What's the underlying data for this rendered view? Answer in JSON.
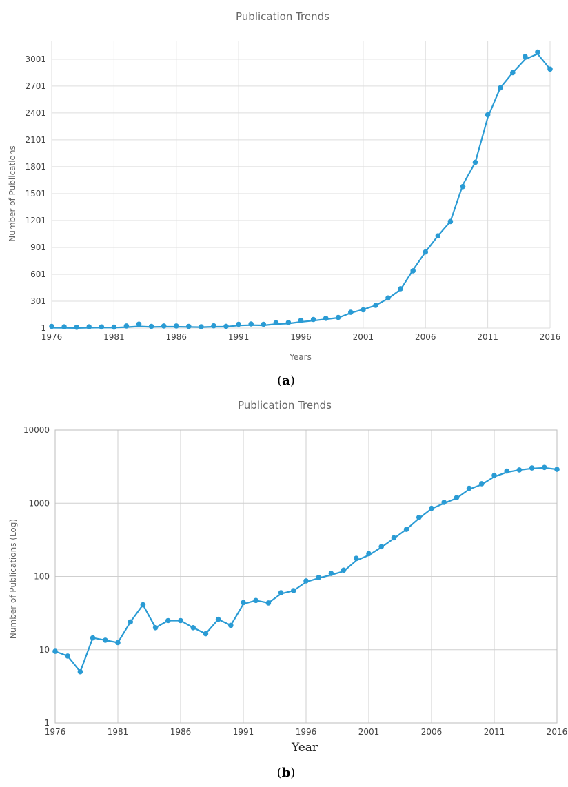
{
  "chart_data": [
    {
      "type": "line",
      "title": "Publication Trends",
      "xlabel": "Years",
      "ylabel": "Number of Publications",
      "xlim": [
        1976,
        2016
      ],
      "ylim": [
        1,
        3200
      ],
      "x_ticks": [
        "1976",
        "1981",
        "1986",
        "1991",
        "1996",
        "2001",
        "2006",
        "2011",
        "2016"
      ],
      "y_ticks": [
        "1",
        "301",
        "601",
        "901",
        "1201",
        "1501",
        "1801",
        "2101",
        "2401",
        "2701",
        "3001"
      ],
      "grid": true,
      "color": "#2a9bd4",
      "caption": "a",
      "series": [
        {
          "x": [
            1976,
            1977,
            1978,
            1979,
            1980,
            1981,
            1982,
            1983,
            1984,
            1985,
            1986,
            1987,
            1988,
            1989,
            1990,
            1991,
            1992,
            1993,
            1994,
            1995,
            1996,
            1997,
            1998,
            1999,
            2000,
            2001,
            2002,
            2003,
            2004,
            2005,
            2006,
            2007,
            2008,
            2009,
            2010,
            2011,
            2012,
            2013,
            2014,
            2015,
            2016
          ],
          "points": [
            20,
            15,
            10,
            15,
            14,
            12,
            25,
            45,
            20,
            25,
            25,
            20,
            16,
            26,
            21,
            43,
            47,
            43,
            60,
            63,
            87,
            97,
            110,
            120,
            177,
            205,
            255,
            337,
            440,
            640,
            850,
            1030,
            1190,
            1580,
            1850,
            2380,
            2680,
            2850,
            3030,
            3080,
            2890
          ],
          "line": [
            5,
            3,
            2,
            5,
            6,
            6,
            12,
            20,
            14,
            16,
            16,
            14,
            12,
            16,
            16,
            30,
            34,
            32,
            46,
            52,
            70,
            84,
            100,
            116,
            170,
            208,
            255,
            330,
            430,
            650,
            850,
            1030,
            1190,
            1600,
            1850,
            2350,
            2680,
            2850,
            3000,
            3060,
            2890
          ]
        }
      ]
    },
    {
      "type": "line",
      "title": "Publication Trends",
      "xlabel": "Year",
      "ylabel": "Number of Publications  (Log)",
      "xlim": [
        1976,
        2016
      ],
      "ylim": [
        1,
        10000
      ],
      "y_scale": "log",
      "x_ticks": [
        "1976",
        "1981",
        "1986",
        "1991",
        "1996",
        "2001",
        "2006",
        "2011",
        "2016"
      ],
      "y_ticks": [
        "1",
        "10",
        "100",
        "1000",
        "10000"
      ],
      "grid": true,
      "color": "#2a9bd4",
      "caption": "b",
      "series": [
        {
          "x": [
            1976,
            1977,
            1978,
            1979,
            1980,
            1981,
            1982,
            1983,
            1984,
            1985,
            1986,
            1987,
            1988,
            1989,
            1990,
            1991,
            1992,
            1993,
            1994,
            1995,
            1996,
            1997,
            1998,
            1999,
            2000,
            2001,
            2002,
            2003,
            2004,
            2005,
            2006,
            2007,
            2008,
            2009,
            2010,
            2011,
            2012,
            2013,
            2014,
            2015,
            2016
          ],
          "points": [
            9.5,
            8.2,
            5,
            14.5,
            13.5,
            12.5,
            24,
            41,
            20,
            25,
            25,
            20,
            16.5,
            26,
            21.5,
            44,
            47,
            43.5,
            60,
            64,
            87,
            97,
            110,
            122,
            177,
            205,
            255,
            337,
            440,
            640,
            850,
            1030,
            1190,
            1600,
            1850,
            2400,
            2750,
            2850,
            3030,
            3080,
            2900
          ],
          "line": [
            9.5,
            8.2,
            5,
            14.5,
            13.5,
            12.5,
            24,
            41,
            20,
            25,
            25,
            20,
            16.5,
            26,
            21.5,
            42,
            47,
            43.5,
            58,
            64,
            84,
            95,
            105,
            118,
            165,
            195,
            250,
            330,
            440,
            620,
            840,
            1000,
            1170,
            1550,
            1800,
            2300,
            2650,
            2850,
            2980,
            3050,
            2900
          ]
        }
      ]
    }
  ]
}
